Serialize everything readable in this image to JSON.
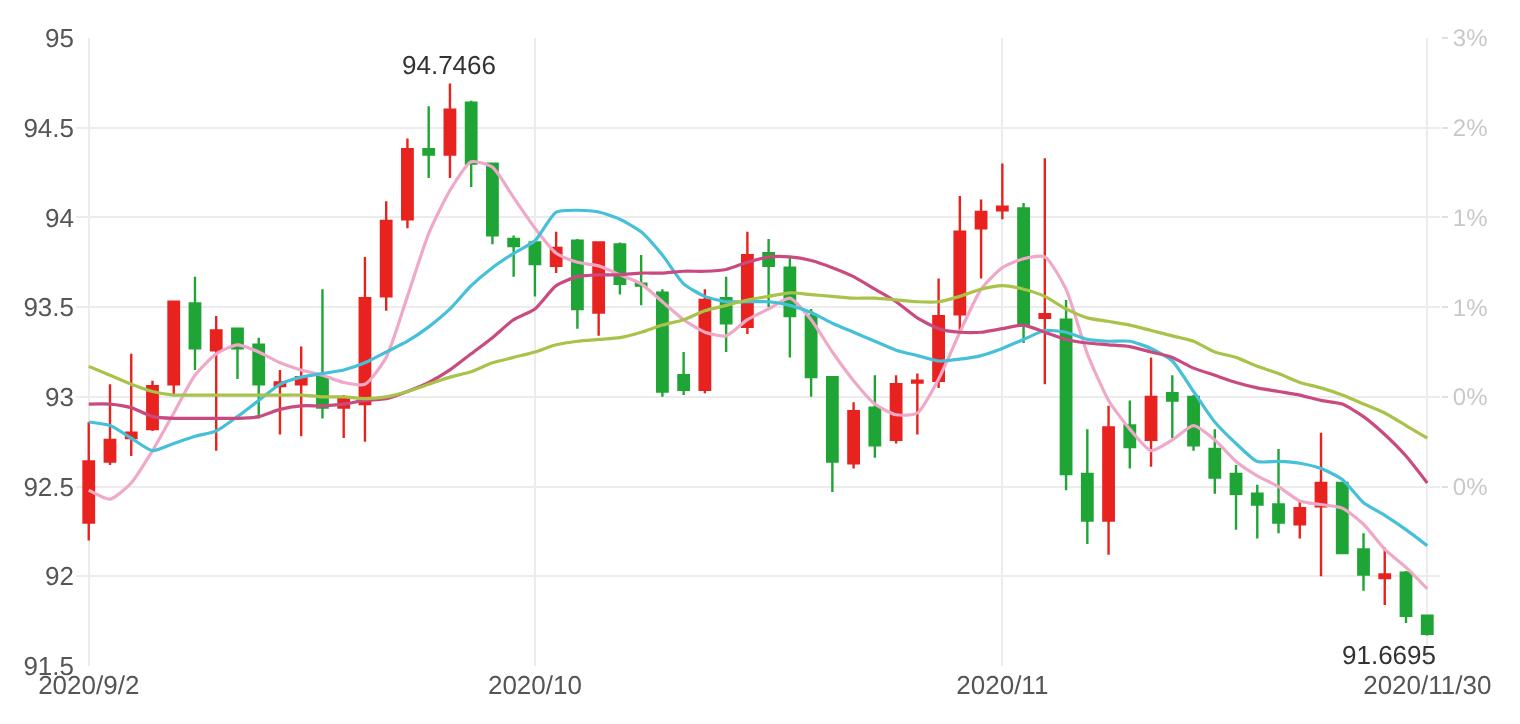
{
  "chart_data": {
    "type": "candlestick",
    "categories": [
      "2020/9/2",
      null,
      null,
      null,
      null,
      null,
      null,
      null,
      null,
      null,
      null,
      null,
      null,
      null,
      null,
      null,
      null,
      null,
      null,
      null,
      null,
      "2020/10",
      null,
      null,
      null,
      null,
      null,
      null,
      null,
      null,
      null,
      null,
      null,
      null,
      null,
      null,
      null,
      null,
      null,
      null,
      null,
      null,
      null,
      "2020/11",
      null,
      null,
      null,
      null,
      null,
      null,
      null,
      null,
      null,
      null,
      null,
      null,
      null,
      null,
      null,
      null,
      null,
      null,
      null,
      "2020/11/30"
    ],
    "ohlc": [
      [
        92.3,
        92.86,
        92.2,
        92.64
      ],
      [
        92.64,
        93.07,
        92.62,
        92.76
      ],
      [
        92.77,
        93.24,
        92.67,
        92.8
      ],
      [
        92.82,
        93.09,
        92.81,
        93.06
      ],
      [
        93.07,
        93.53,
        93.01,
        93.53
      ],
      [
        93.52,
        93.67,
        93.15,
        93.27
      ],
      [
        93.26,
        93.45,
        92.7,
        93.37
      ],
      [
        93.38,
        93.38,
        93.1,
        93.27
      ],
      [
        93.29,
        93.33,
        92.88,
        93.07
      ],
      [
        93.06,
        93.15,
        92.79,
        93.08
      ],
      [
        93.07,
        93.28,
        92.78,
        93.11
      ],
      [
        93.11,
        93.6,
        92.88,
        92.94
      ],
      [
        92.94,
        93.01,
        92.77,
        92.99
      ],
      [
        92.96,
        93.78,
        92.75,
        93.55
      ],
      [
        93.56,
        94.09,
        93.48,
        93.98
      ],
      [
        93.99,
        94.44,
        93.94,
        94.38
      ],
      [
        94.38,
        94.62,
        94.22,
        94.35
      ],
      [
        94.35,
        94.7466,
        94.22,
        94.6
      ],
      [
        94.64,
        94.65,
        94.17,
        94.3
      ],
      [
        94.3,
        94.3,
        93.85,
        93.9
      ],
      [
        93.88,
        93.9,
        93.67,
        93.84
      ],
      [
        93.86,
        93.86,
        93.56,
        93.74
      ],
      [
        93.73,
        93.92,
        93.69,
        93.83
      ],
      [
        93.87,
        93.88,
        93.38,
        93.49
      ],
      [
        93.47,
        93.86,
        93.34,
        93.86
      ],
      [
        93.85,
        93.86,
        93.57,
        93.63
      ],
      [
        93.63,
        93.79,
        93.51,
        93.62
      ],
      [
        93.58,
        93.6,
        93.0,
        93.03
      ],
      [
        93.12,
        93.25,
        93.01,
        93.04
      ],
      [
        93.04,
        93.6,
        93.02,
        93.54
      ],
      [
        93.55,
        93.67,
        93.25,
        93.41
      ],
      [
        93.39,
        93.92,
        93.35,
        93.79
      ],
      [
        93.8,
        93.88,
        93.5,
        93.73
      ],
      [
        93.72,
        93.78,
        93.22,
        93.45
      ],
      [
        93.45,
        93.49,
        93.0,
        93.11
      ],
      [
        93.11,
        93.11,
        92.47,
        92.64
      ],
      [
        92.63,
        92.97,
        92.6,
        92.92
      ],
      [
        92.94,
        93.12,
        92.66,
        92.73
      ],
      [
        92.76,
        93.12,
        92.74,
        93.07
      ],
      [
        93.08,
        93.13,
        92.79,
        93.09
      ],
      [
        93.09,
        93.66,
        93.05,
        93.45
      ],
      [
        93.46,
        94.12,
        93.35,
        93.92
      ],
      [
        93.94,
        94.1,
        93.66,
        94.03
      ],
      [
        94.04,
        94.3,
        93.99,
        94.06
      ],
      [
        94.05,
        94.08,
        93.3,
        93.4
      ],
      [
        93.44,
        94.33,
        93.07,
        93.46
      ],
      [
        93.43,
        93.54,
        92.48,
        92.57
      ],
      [
        92.57,
        92.82,
        92.18,
        92.31
      ],
      [
        92.31,
        92.95,
        92.12,
        92.83
      ],
      [
        92.84,
        92.98,
        92.6,
        92.72
      ],
      [
        92.76,
        93.22,
        92.61,
        93.0
      ],
      [
        93.02,
        93.12,
        92.77,
        92.98
      ],
      [
        93.0,
        93.01,
        92.7,
        92.73
      ],
      [
        92.71,
        92.82,
        92.46,
        92.55
      ],
      [
        92.57,
        92.62,
        92.26,
        92.46
      ],
      [
        92.46,
        92.51,
        92.21,
        92.4
      ],
      [
        92.4,
        92.71,
        92.24,
        92.3
      ],
      [
        92.29,
        92.42,
        92.21,
        92.38
      ],
      [
        92.39,
        92.8,
        92.0,
        92.52
      ],
      [
        92.52,
        92.52,
        92.13,
        92.13
      ],
      [
        92.15,
        92.24,
        91.92,
        92.01
      ],
      [
        91.99,
        92.16,
        91.84,
        92.01
      ],
      [
        92.02,
        92.03,
        91.74,
        91.78
      ],
      [
        91.78,
        91.78,
        91.6695,
        91.68
      ]
    ],
    "colors": [
      "#e8231f",
      "#e8231f",
      "#e8231f",
      "#e8231f",
      "#e8231f",
      "#1ea535",
      "#e8231f",
      "#1ea535",
      "#1ea535",
      "#e8231f",
      "#e8231f",
      "#1ea535",
      "#e8231f",
      "#e8231f",
      "#e8231f",
      "#e8231f",
      "#1ea535",
      "#e8231f",
      "#1ea535",
      "#1ea535",
      "#1ea535",
      "#1ea535",
      "#e8231f",
      "#1ea535",
      "#e8231f",
      "#1ea535",
      "#1ea535",
      "#1ea535",
      "#1ea535",
      "#e8231f",
      "#1ea535",
      "#e8231f",
      "#1ea535",
      "#1ea535",
      "#1ea535",
      "#1ea535",
      "#e8231f",
      "#1ea535",
      "#e8231f",
      "#e8231f",
      "#e8231f",
      "#e8231f",
      "#e8231f",
      "#e8231f",
      "#1ea535",
      "#e8231f",
      "#1ea535",
      "#1ea535",
      "#e8231f",
      "#1ea535",
      "#e8231f",
      "#1ea535",
      "#1ea535",
      "#1ea535",
      "#1ea535",
      "#1ea535",
      "#1ea535",
      "#e8231f",
      "#e8231f",
      "#1ea535",
      "#1ea535",
      "#e8231f",
      "#1ea535",
      "#1ea535"
    ],
    "series": [
      {
        "type": "line",
        "color": "#f0a8c8",
        "values": [
          92.48,
          92.43,
          92.52,
          92.7,
          92.91,
          93.12,
          93.24,
          93.29,
          93.25,
          93.19,
          93.15,
          93.12,
          93.08,
          93.07,
          93.22,
          93.56,
          93.91,
          94.15,
          94.31,
          94.28,
          94.11,
          93.94,
          93.8,
          93.75,
          93.73,
          93.68,
          93.63,
          93.53,
          93.43,
          93.36,
          93.34,
          93.43,
          93.49,
          93.55,
          93.43,
          93.25,
          93.09,
          92.96,
          92.9,
          92.91,
          93.1,
          93.36,
          93.6,
          93.72,
          93.77,
          93.78,
          93.6,
          93.24,
          92.98,
          92.82,
          92.7,
          92.76,
          92.84,
          92.76,
          92.64,
          92.56,
          92.5,
          92.42,
          92.4,
          92.38,
          92.29,
          92.15,
          92.05,
          91.93
        ]
      },
      {
        "type": "line",
        "color": "#45c0d8",
        "values": [
          92.86,
          92.84,
          92.77,
          92.7,
          92.74,
          92.78,
          92.81,
          92.89,
          92.98,
          93.07,
          93.11,
          93.13,
          93.15,
          93.19,
          93.25,
          93.31,
          93.39,
          93.49,
          93.62,
          93.72,
          93.8,
          93.87,
          94.03,
          94.04,
          94.03,
          93.99,
          93.92,
          93.79,
          93.63,
          93.56,
          93.53,
          93.53,
          93.53,
          93.51,
          93.47,
          93.41,
          93.36,
          93.31,
          93.26,
          93.23,
          93.2,
          93.21,
          93.23,
          93.27,
          93.32,
          93.37,
          93.36,
          93.32,
          93.31,
          93.31,
          93.27,
          93.2,
          93.03,
          92.86,
          92.74,
          92.64,
          92.64,
          92.63,
          92.6,
          92.54,
          92.41,
          92.34,
          92.26,
          92.17
        ]
      },
      {
        "type": "line",
        "color": "#c94a7f",
        "values": [
          92.96,
          92.96,
          92.94,
          92.89,
          92.88,
          92.88,
          92.88,
          92.88,
          92.89,
          92.93,
          92.95,
          92.95,
          92.96,
          92.98,
          92.99,
          93.03,
          93.08,
          93.15,
          93.24,
          93.33,
          93.43,
          93.49,
          93.62,
          93.67,
          93.68,
          93.68,
          93.69,
          93.69,
          93.7,
          93.7,
          93.71,
          93.75,
          93.78,
          93.78,
          93.76,
          93.72,
          93.67,
          93.6,
          93.53,
          93.44,
          93.38,
          93.36,
          93.36,
          93.38,
          93.4,
          93.36,
          93.32,
          93.3,
          93.29,
          93.28,
          93.25,
          93.22,
          93.16,
          93.12,
          93.08,
          93.05,
          93.03,
          93.01,
          92.98,
          92.96,
          92.89,
          92.79,
          92.67,
          92.52
        ]
      },
      {
        "type": "line",
        "color": "#a8c24a",
        "values": [
          93.17,
          93.12,
          93.07,
          93.03,
          93.01,
          93.01,
          93.01,
          93.01,
          93.01,
          93.01,
          93.01,
          93.0,
          93.0,
          92.99,
          93.0,
          93.03,
          93.07,
          93.11,
          93.14,
          93.19,
          93.22,
          93.25,
          93.29,
          93.31,
          93.32,
          93.33,
          93.36,
          93.4,
          93.43,
          93.48,
          93.51,
          93.54,
          93.56,
          93.58,
          93.57,
          93.56,
          93.55,
          93.55,
          93.54,
          93.53,
          93.53,
          93.56,
          93.6,
          93.62,
          93.6,
          93.56,
          93.49,
          93.44,
          93.42,
          93.4,
          93.37,
          93.34,
          93.31,
          93.25,
          93.22,
          93.17,
          93.13,
          93.08,
          93.05,
          93.01,
          92.96,
          92.91,
          92.84,
          92.77
        ]
      }
    ],
    "ylim": [
      91.5,
      95
    ],
    "yticks": [
      91.5,
      92,
      92.5,
      93,
      93.5,
      94,
      94.5,
      95
    ],
    "y2lim": [
      -1.24,
      2.54
    ],
    "y2ticks": [
      {
        "value": -0.16,
        "label": "0%"
      },
      {
        "value": 0.38,
        "label": "0%"
      },
      {
        "value": 0.92,
        "label": "1%"
      },
      {
        "value": 1.46,
        "label": "1%"
      },
      {
        "value": 2.0,
        "label": "2%"
      },
      {
        "value": 2.54,
        "label": "3%"
      }
    ],
    "annotations": [
      {
        "text": "94.7466",
        "y": 94.7466
      },
      {
        "text": "91.6695",
        "x": "2020/11/30",
        "y": 91.6695
      }
    ],
    "grid": true,
    "line_style": "solid",
    "marker": "none"
  }
}
